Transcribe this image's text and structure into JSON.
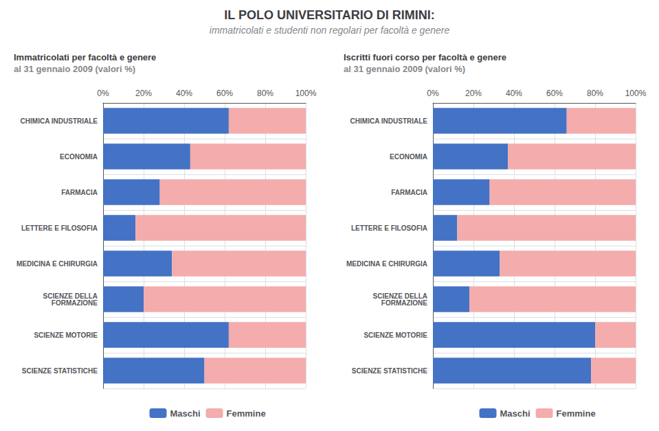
{
  "title": "IL POLO UNIVERSITARIO DI RIMINI:",
  "subtitle": "immatricolati e studenti non regolari per facoltà e genere",
  "chart_data": [
    {
      "type": "bar",
      "orientation": "horizontal",
      "stacked": true,
      "title": "Immatricolati per facoltà e genere",
      "subtitle": "al 31 gennaio 2009 (valori %)",
      "categories": [
        "CHIMICA INDUSTRIALE",
        "ECONOMIA",
        "FARMACIA",
        "LETTERE E FILOSOFIA",
        "MEDICINA E CHIRURGIA",
        "SCIENZE DELLA\nFORMAZIONE",
        "SCIENZE MOTORIE",
        "SCIENZE STATISTICHE"
      ],
      "series": [
        {
          "name": "Maschi",
          "color": "#4472C4",
          "values": [
            62,
            43,
            28,
            16,
            34,
            20,
            62,
            50
          ]
        },
        {
          "name": "Femmine",
          "color": "#F4ACAC",
          "values": [
            38,
            57,
            72,
            84,
            66,
            80,
            38,
            50
          ]
        }
      ],
      "xlim": [
        0,
        100
      ],
      "xticks": [
        {
          "value": 0,
          "label": "0%"
        },
        {
          "value": 20,
          "label": "20%"
        },
        {
          "value": 40,
          "label": "40%"
        },
        {
          "value": 60,
          "label": "60%"
        },
        {
          "value": 80,
          "label": "80%"
        },
        {
          "value": 100,
          "label": "100%"
        }
      ],
      "grid": true,
      "legend": "bottom"
    },
    {
      "type": "bar",
      "orientation": "horizontal",
      "stacked": true,
      "title": "Iscritti fuori corso per facoltà e genere",
      "subtitle": "al 31 gennaio 2009 (valori %)",
      "categories": [
        "CHIMICA INDUSTRIALE",
        "ECONOMIA",
        "FARMACIA",
        "LETTERE E FILOSOFIA",
        "MEDICINA E CHIRURGIA",
        "SCIENZE DELLA\nFORMAZIONE",
        "SCIENZE MOTORIE",
        "SCIENZE STATISTICHE"
      ],
      "series": [
        {
          "name": "Maschi",
          "color": "#4472C4",
          "values": [
            66,
            37,
            28,
            12,
            33,
            18,
            80,
            78
          ]
        },
        {
          "name": "Femmine",
          "color": "#F4ACAC",
          "values": [
            34,
            63,
            72,
            88,
            67,
            82,
            20,
            22
          ]
        }
      ],
      "xlim": [
        0,
        100
      ],
      "xticks": [
        {
          "value": 0,
          "label": "0%"
        },
        {
          "value": 20,
          "label": "20%"
        },
        {
          "value": 40,
          "label": "40%"
        },
        {
          "value": 60,
          "label": "60%"
        },
        {
          "value": 80,
          "label": "80%"
        },
        {
          "value": 100,
          "label": "100%"
        }
      ],
      "grid": true,
      "legend": "bottom"
    }
  ]
}
